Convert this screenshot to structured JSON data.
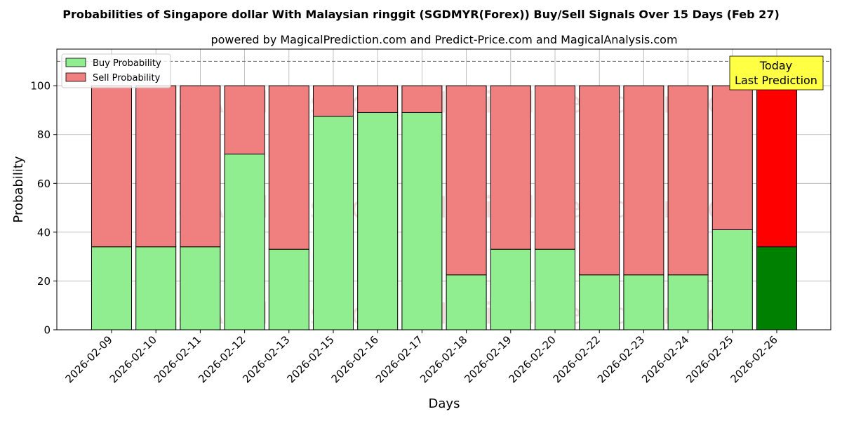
{
  "title": "Probabilities of Singapore dollar With Malaysian ringgit (SGDMYR(Forex)) Buy/Sell Signals Over 15 Days (Feb 27)",
  "subtitle": "powered by MagicalPrediction.com and Predict-Price.com and MagicalAnalysis.com",
  "watermarks": [
    "MagicalAnalysis.com",
    "MagicalPrediction.com"
  ],
  "today_box": {
    "line1": "Today",
    "line2": "Last Prediction"
  },
  "colors": {
    "buy": "#90ee90",
    "sell": "#f08080",
    "buy_today": "#008000",
    "sell_today": "#ff0000",
    "today_box": "#ffff44"
  },
  "chart_data": {
    "type": "bar",
    "stacked": true,
    "xlabel": "Days",
    "ylabel": "Probability",
    "ylim": [
      0,
      115
    ],
    "yticks": [
      0,
      20,
      40,
      60,
      80,
      100
    ],
    "reference_line": 110,
    "grid": true,
    "legend_position": "top-left",
    "categories": [
      "2026-02-09",
      "2026-02-10",
      "2026-02-11",
      "2026-02-12",
      "2026-02-13",
      "2026-02-15",
      "2026-02-16",
      "2026-02-17",
      "2026-02-18",
      "2026-02-19",
      "2026-02-20",
      "2026-02-22",
      "2026-02-23",
      "2026-02-24",
      "2026-02-25",
      "2026-02-26"
    ],
    "series": [
      {
        "name": "Buy Probability",
        "values": [
          34,
          34,
          34,
          72,
          33,
          87.5,
          89,
          89,
          22.5,
          33,
          33,
          22.5,
          22.5,
          22.5,
          41,
          34
        ]
      },
      {
        "name": "Sell Probability",
        "values": [
          66,
          66,
          66,
          28,
          67,
          12.5,
          11,
          11,
          77.5,
          67,
          67,
          77.5,
          77.5,
          77.5,
          59,
          66
        ]
      }
    ]
  }
}
